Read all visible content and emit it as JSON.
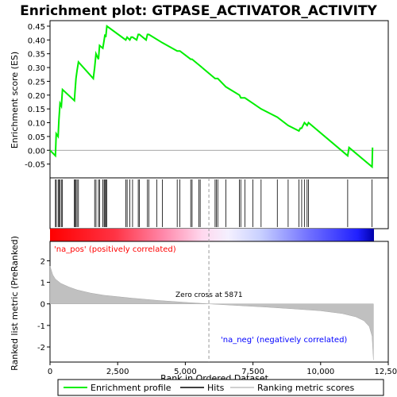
{
  "chart_data": {
    "type": "line",
    "title": "Enrichment plot: GTPASE_ACTIVATOR_ACTIVITY",
    "top_panel": {
      "ylabel": "Enrichment score (ES)",
      "ylim": [
        -0.1,
        0.47
      ],
      "yticks": [
        "0.45",
        "0.40",
        "0.35",
        "0.30",
        "0.25",
        "0.20",
        "0.15",
        "0.10",
        "0.05",
        "0.00",
        "-0.05"
      ],
      "ytick_values": [
        0.45,
        0.4,
        0.35,
        0.3,
        0.25,
        0.2,
        0.15,
        0.1,
        0.05,
        0.0,
        -0.05
      ],
      "series": [
        {
          "name": "Enrichment profile",
          "color": "#00ee00",
          "x": [
            0,
            200,
            230,
            300,
            330,
            370,
            420,
            460,
            900,
            920,
            960,
            1000,
            1050,
            1600,
            1650,
            1700,
            1790,
            1830,
            1950,
            2000,
            2030,
            2060,
            2100,
            2800,
            2850,
            2950,
            3000,
            3050,
            3200,
            3260,
            3300,
            3550,
            3600,
            3650,
            4150,
            4700,
            4800,
            5200,
            5250,
            5500,
            6100,
            6150,
            6200,
            6500,
            7000,
            7050,
            7200,
            7500,
            7800,
            8400,
            8800,
            9200,
            9250,
            9300,
            9400,
            9500,
            9550,
            11000,
            11050,
            11900,
            11920
          ],
          "y": [
            0.0,
            -0.02,
            0.06,
            0.05,
            0.11,
            0.17,
            0.16,
            0.22,
            0.18,
            0.21,
            0.26,
            0.29,
            0.32,
            0.26,
            0.3,
            0.35,
            0.33,
            0.38,
            0.37,
            0.4,
            0.42,
            0.41,
            0.45,
            0.4,
            0.41,
            0.4,
            0.41,
            0.41,
            0.4,
            0.42,
            0.42,
            0.4,
            0.42,
            0.42,
            0.39,
            0.36,
            0.36,
            0.33,
            0.33,
            0.31,
            0.26,
            0.26,
            0.26,
            0.23,
            0.2,
            0.19,
            0.19,
            0.17,
            0.15,
            0.12,
            0.09,
            0.07,
            0.08,
            0.08,
            0.1,
            0.09,
            0.1,
            -0.02,
            0.01,
            -0.06,
            0.01
          ]
        }
      ]
    },
    "hits_panel": {
      "hit_ranks": [
        200,
        230,
        300,
        330,
        370,
        420,
        460,
        900,
        920,
        960,
        1000,
        1050,
        1650,
        1700,
        1790,
        1830,
        1950,
        2000,
        2030,
        2060,
        2100,
        2800,
        2850,
        2950,
        3050,
        3260,
        3300,
        3600,
        3650,
        3950,
        4150,
        4700,
        4800,
        5200,
        5250,
        5500,
        5550,
        6100,
        6150,
        6200,
        6500,
        7000,
        7050,
        7200,
        7500,
        7800,
        8400,
        8800,
        9200,
        9300,
        9400,
        9500,
        9550,
        11000,
        11900
      ]
    },
    "bottom_panel": {
      "ylabel": "Ranked list metric (PreRanked)",
      "xlabel": "Rank in Ordered Dataset",
      "ylim": [
        -2.7,
        2.9
      ],
      "yticks": [
        "2",
        "1",
        "0",
        "-1",
        "-2"
      ],
      "ytick_values": [
        2,
        1,
        0,
        -1,
        -2
      ],
      "xlim": [
        0,
        12500
      ],
      "xticks": [
        "0",
        "2,500",
        "5,000",
        "7,500",
        "10,000",
        "12,500"
      ],
      "xtick_values": [
        0,
        2500,
        5000,
        7500,
        10000,
        12500
      ],
      "metric_curve": {
        "x": [
          0,
          100,
          200,
          400,
          700,
          1000,
          1500,
          2000,
          3000,
          4000,
          5000,
          5871,
          7000,
          8000,
          9000,
          10000,
          10800,
          11300,
          11600,
          11800,
          11900,
          11950
        ],
        "y": [
          1.75,
          1.35,
          1.15,
          0.95,
          0.78,
          0.65,
          0.5,
          0.4,
          0.27,
          0.16,
          0.07,
          0.0,
          -0.08,
          -0.15,
          -0.23,
          -0.32,
          -0.45,
          -0.6,
          -0.78,
          -1.05,
          -1.5,
          -2.6
        ]
      },
      "zero_cross_label": "Zero cross at 5871",
      "zero_cross_rank": 5871,
      "pos_label": "'na_pos' (positively correlated)",
      "neg_label": "'na_neg' (negatively correlated)",
      "pos_color": "#ff0000",
      "neg_color": "#0000ff",
      "n_genes": 11950
    },
    "legend": [
      "Enrichment profile",
      "Hits",
      "Ranking metric scores"
    ]
  }
}
